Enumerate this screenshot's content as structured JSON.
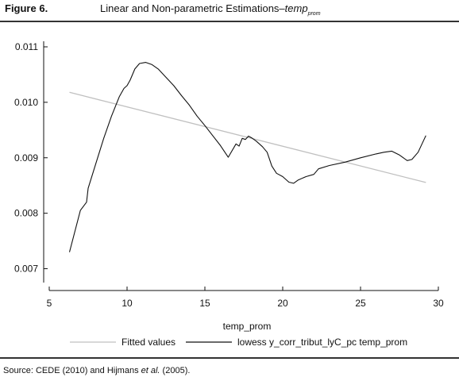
{
  "figure": {
    "label": "Figure 6.",
    "title_prefix": "Linear and Non-parametric Estimations–",
    "title_var": "temp",
    "title_sub": "prom"
  },
  "source": {
    "prefix": "Source: CEDE (2010) and Hijmans ",
    "etal": "et al.",
    "suffix": " (2005)."
  },
  "chart_data": {
    "type": "line",
    "xlabel": "temp_prom",
    "ylabel": "",
    "xlim": [
      5,
      30
    ],
    "ylim": [
      0.00675,
      0.0111
    ],
    "xticks": [
      5,
      10,
      15,
      20,
      25,
      30
    ],
    "yticks": [
      0.007,
      0.008,
      0.009,
      0.01,
      0.011
    ],
    "ytick_labels": [
      "0.007",
      "0.008",
      "0.009",
      "0.010",
      "0.011"
    ],
    "grid": false,
    "legend_position": "bottom",
    "series": [
      {
        "name": "Fitted values",
        "color": "#c0c0c0",
        "x": [
          6.3,
          29.2
        ],
        "y": [
          0.01018,
          0.008555
        ]
      },
      {
        "name": "lowess y_corr_tribut_lyC_pc temp_prom",
        "color": "#111111",
        "x": [
          6.3,
          7.0,
          7.4,
          7.5,
          8.0,
          8.5,
          9.0,
          9.5,
          9.8,
          10.0,
          10.2,
          10.5,
          10.8,
          11.2,
          11.6,
          12.0,
          12.5,
          13.0,
          13.5,
          14.0,
          14.5,
          15.0,
          15.5,
          16.0,
          16.5,
          17.0,
          17.2,
          17.4,
          17.6,
          17.8,
          18.0,
          18.3,
          18.7,
          19.0,
          19.3,
          19.6,
          20.0,
          20.4,
          20.7,
          21.0,
          21.5,
          22.0,
          22.3,
          23.0,
          24.0,
          25.0,
          26.0,
          26.5,
          27.0,
          27.5,
          28.0,
          28.3,
          28.7,
          29.2
        ],
        "y": [
          0.0073,
          0.00805,
          0.0082,
          0.00845,
          0.0089,
          0.00935,
          0.00975,
          0.0101,
          0.01025,
          0.0103,
          0.0104,
          0.0106,
          0.0107,
          0.01072,
          0.01068,
          0.0106,
          0.01045,
          0.0103,
          0.01012,
          0.00995,
          0.00975,
          0.00958,
          0.0094,
          0.00922,
          0.00901,
          0.00925,
          0.00921,
          0.00935,
          0.00933,
          0.00939,
          0.00936,
          0.0093,
          0.0092,
          0.0091,
          0.00885,
          0.00872,
          0.00866,
          0.00856,
          0.00854,
          0.0086,
          0.00866,
          0.0087,
          0.0088,
          0.00886,
          0.00892,
          0.009,
          0.00907,
          0.0091,
          0.00912,
          0.00905,
          0.00895,
          0.00897,
          0.0091,
          0.0094
        ]
      }
    ]
  }
}
